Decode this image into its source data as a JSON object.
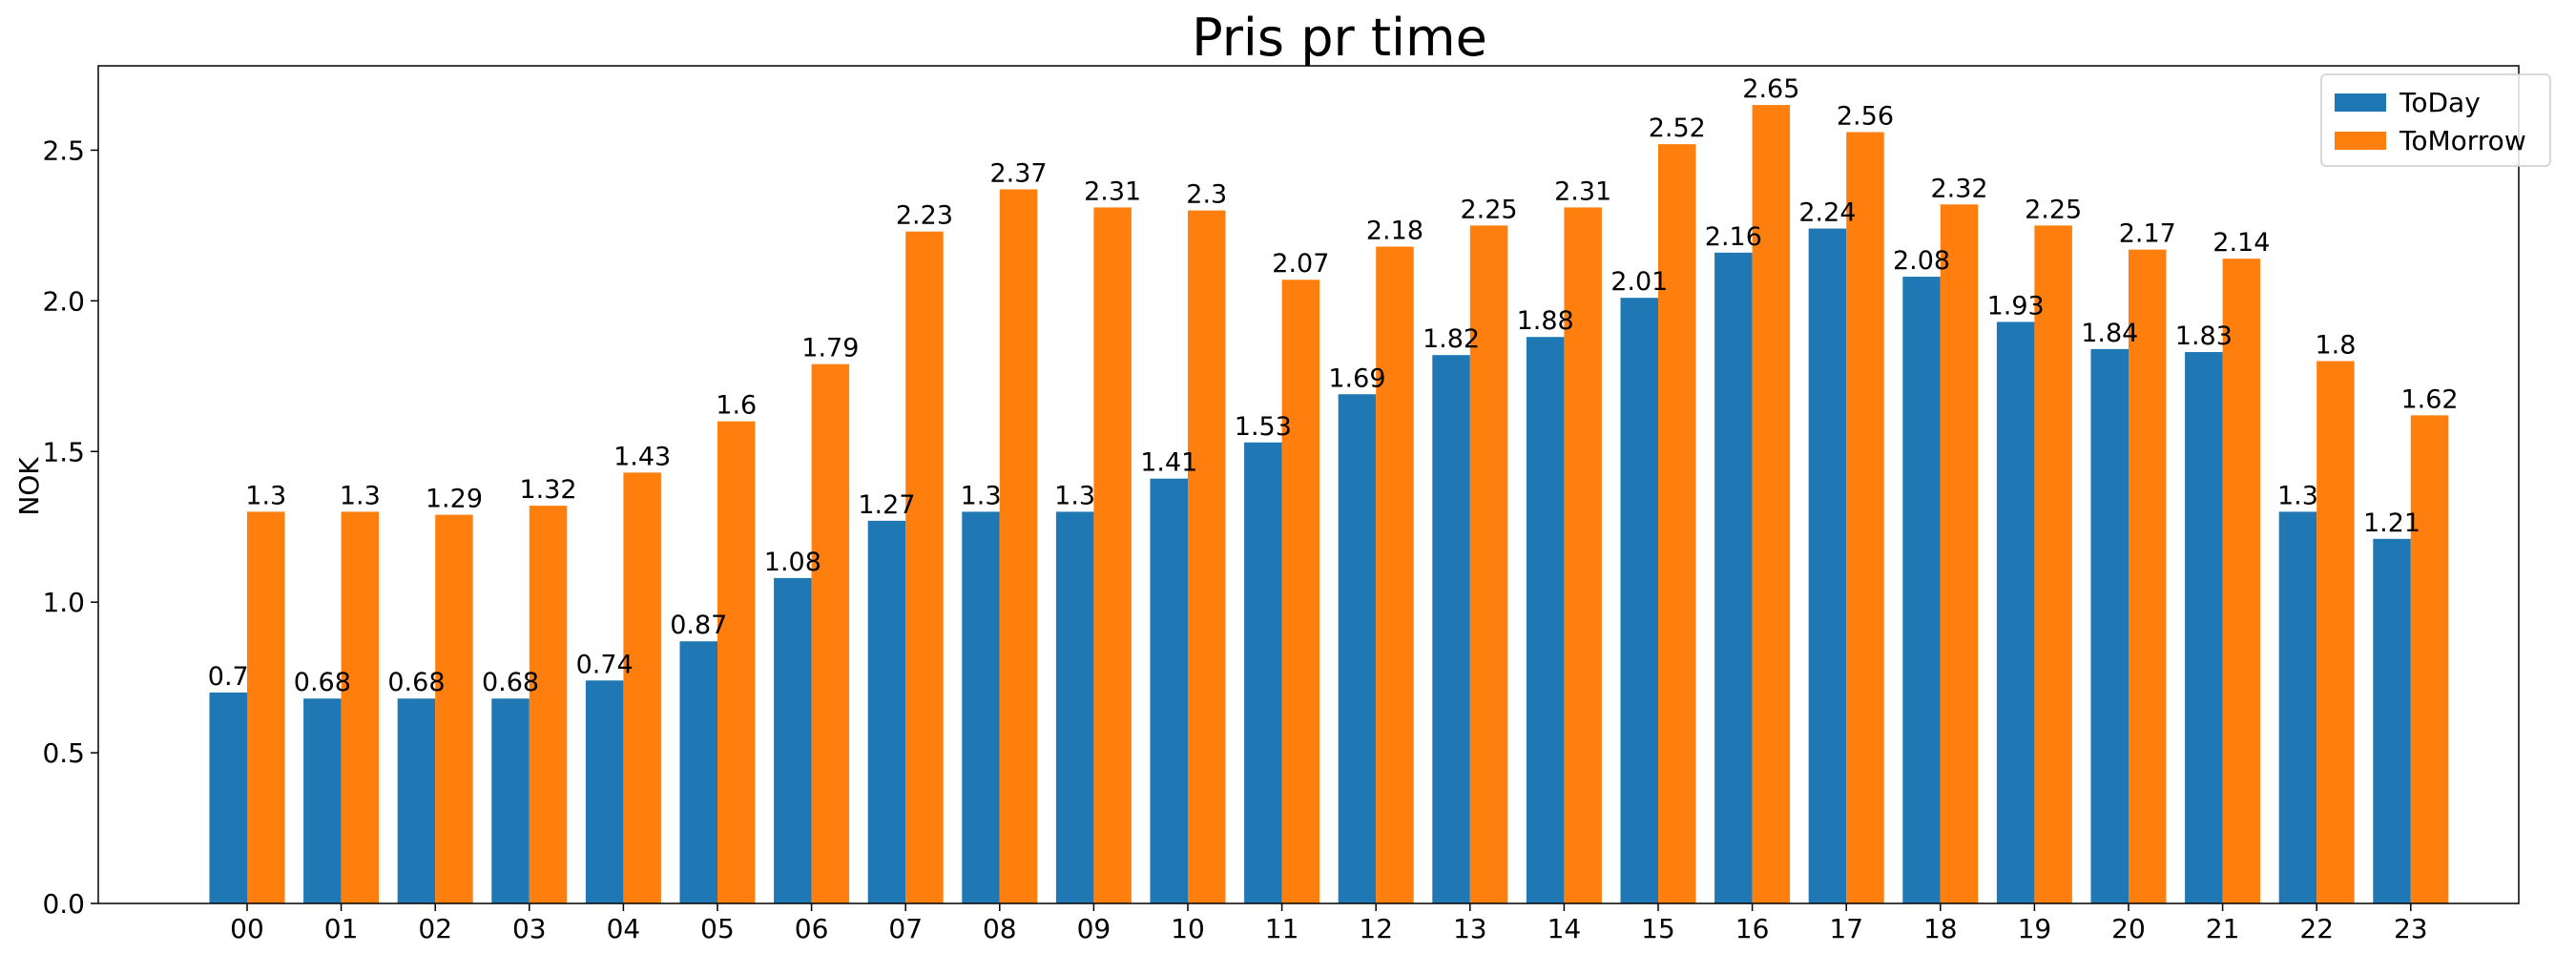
{
  "chart_data": {
    "type": "bar",
    "title": "Pris pr time",
    "xlabel": "",
    "ylabel": "NOK",
    "ylim": [
      0,
      2.78
    ],
    "yticks": [
      "0.0",
      "0.5",
      "1.0",
      "1.5",
      "2.0",
      "2.5"
    ],
    "grid": false,
    "legend_position": "top-right",
    "categories": [
      "00",
      "01",
      "02",
      "03",
      "04",
      "05",
      "06",
      "07",
      "08",
      "09",
      "10",
      "11",
      "12",
      "13",
      "14",
      "15",
      "16",
      "17",
      "18",
      "19",
      "20",
      "21",
      "22",
      "23"
    ],
    "series": [
      {
        "name": "ToDay",
        "color": "#1f77b4",
        "values": [
          0.7,
          0.68,
          0.68,
          0.68,
          0.74,
          0.87,
          1.08,
          1.27,
          1.3,
          1.3,
          1.41,
          1.53,
          1.69,
          1.82,
          1.88,
          2.01,
          2.16,
          2.24,
          2.08,
          1.93,
          1.84,
          1.83,
          1.3,
          1.21
        ]
      },
      {
        "name": "ToMorrow",
        "color": "#ff7f0e",
        "values": [
          1.3,
          1.3,
          1.29,
          1.32,
          1.43,
          1.6,
          1.79,
          2.23,
          2.37,
          2.31,
          2.3,
          2.07,
          2.18,
          2.25,
          2.31,
          2.52,
          2.65,
          2.56,
          2.32,
          2.25,
          2.17,
          2.14,
          1.8,
          1.62
        ]
      }
    ]
  }
}
